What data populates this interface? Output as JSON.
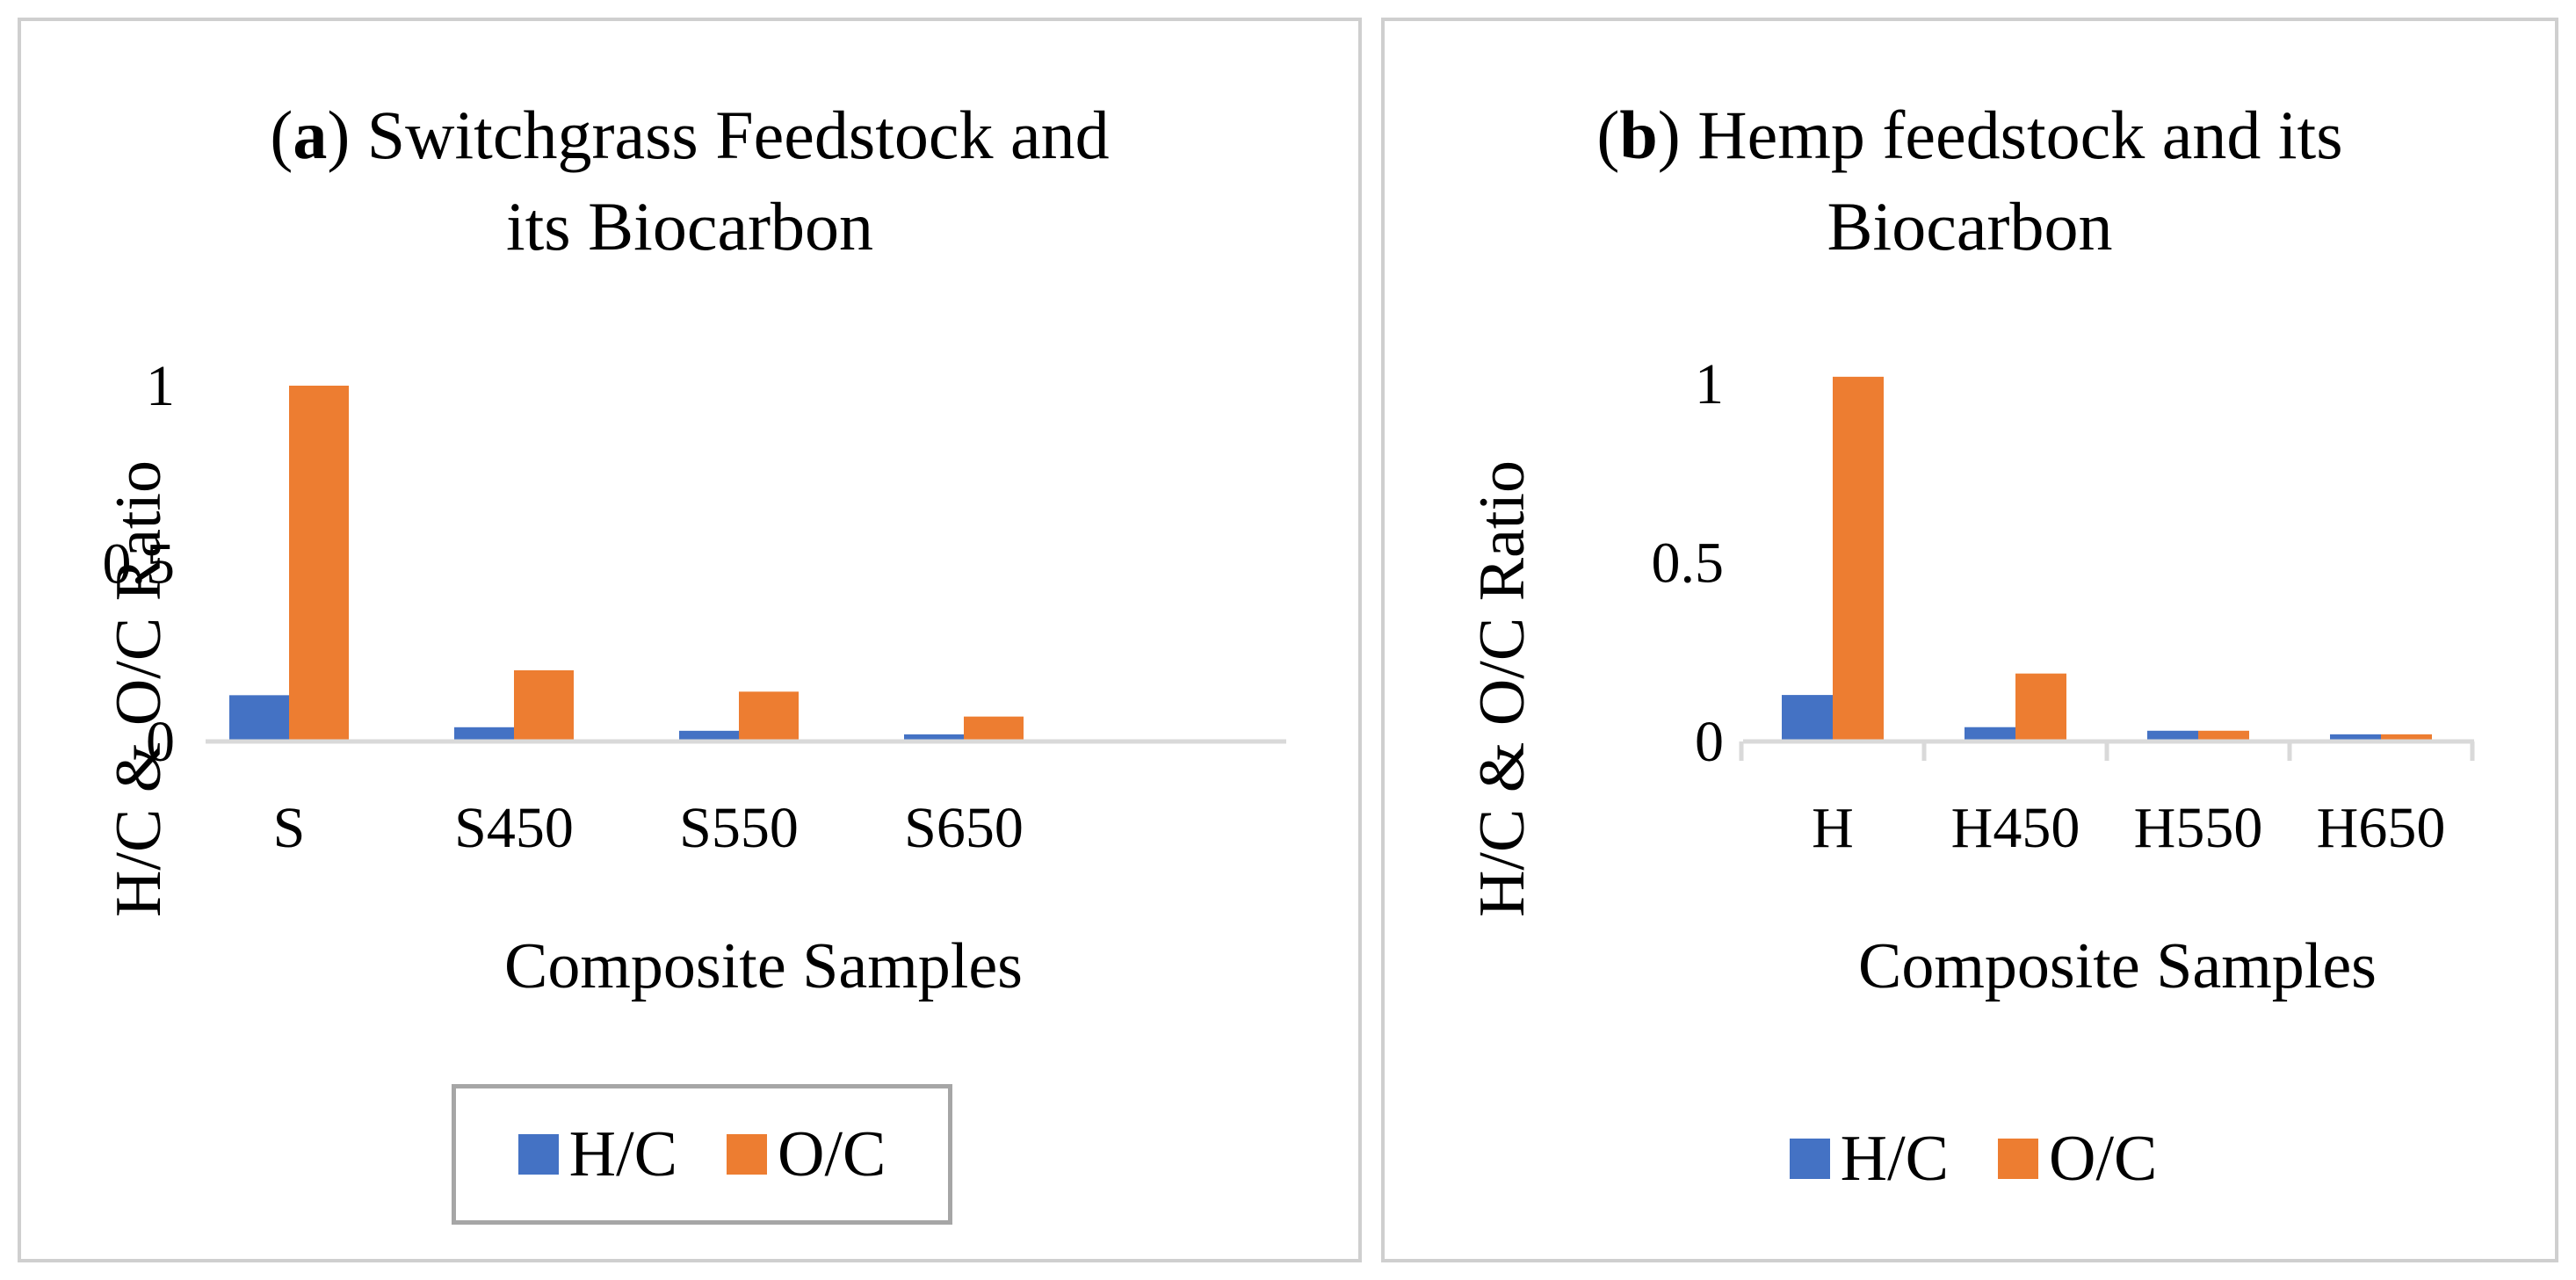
{
  "colors": {
    "hc": "#4472C4",
    "oc": "#ED7D31",
    "axis": "#d9d9d9",
    "border": "#cfcfcf"
  },
  "chart_data": [
    {
      "type": "bar",
      "panel_label": "a",
      "title": "Switchgrass Feedstock and its Biocarbon",
      "title_line1": "Switchgrass Feedstock and",
      "title_line2": "its Biocarbon",
      "categories": [
        "S",
        "S450",
        "S550",
        "S650"
      ],
      "series": [
        {
          "name": "H/C",
          "values": [
            0.13,
            0.04,
            0.03,
            0.02
          ]
        },
        {
          "name": "O/C",
          "values": [
            1.0,
            0.2,
            0.14,
            0.07
          ]
        }
      ],
      "yticks": [
        "0",
        "0.5",
        "1"
      ],
      "ylim": [
        0,
        1.0
      ],
      "xlabel": "Composite Samples",
      "ylabel": "H/C & O/C Ratio",
      "legend": [
        "H/C",
        "O/C"
      ]
    },
    {
      "type": "bar",
      "panel_label": "b",
      "title": "Hemp feedstock and its Biocarbon",
      "title_line1": "Hemp feedstock and its",
      "title_line2": "Biocarbon",
      "categories": [
        "H",
        "H450",
        "H550",
        "H650"
      ],
      "series": [
        {
          "name": "H/C",
          "values": [
            0.13,
            0.04,
            0.03,
            0.02
          ]
        },
        {
          "name": "O/C",
          "values": [
            1.02,
            0.19,
            0.03,
            0.02
          ]
        }
      ],
      "yticks": [
        "0",
        "0.5",
        "1"
      ],
      "ylim": [
        0,
        1.0
      ],
      "xlabel": "Composite Samples",
      "ylabel": "H/C & O/C Ratio",
      "legend": [
        "H/C",
        "O/C"
      ]
    }
  ]
}
